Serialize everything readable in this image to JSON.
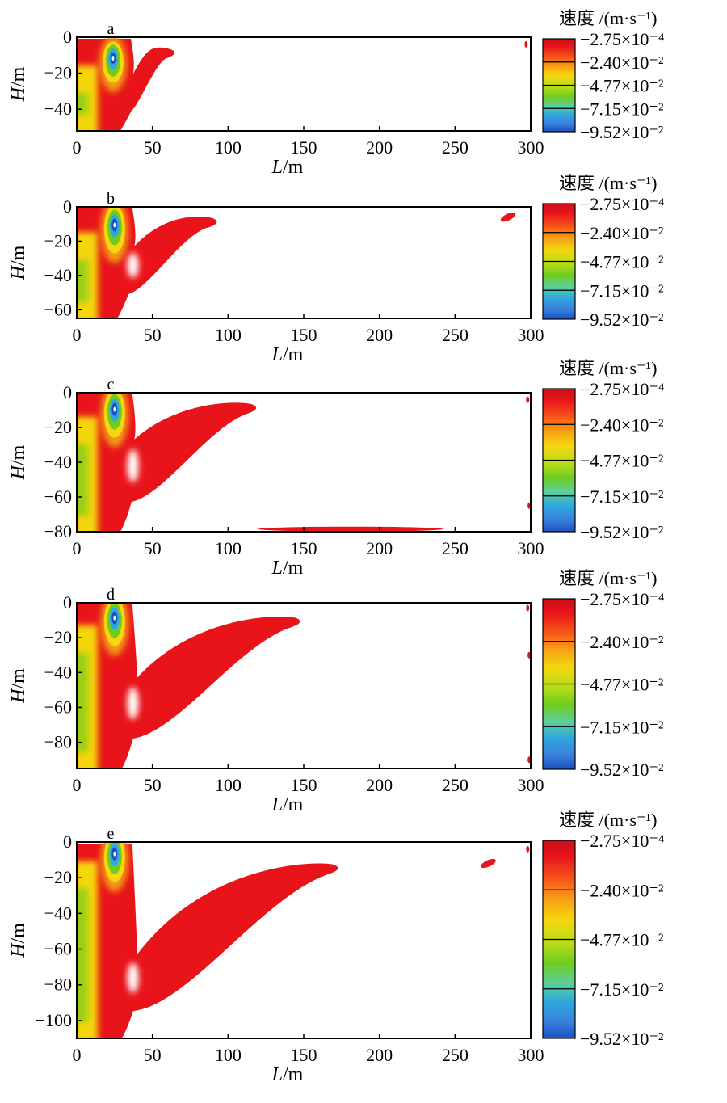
{
  "colorbar": {
    "title": "速度 /(m·s⁻¹)",
    "levels": [
      "−2.75×10⁻⁴",
      "−2.40×10⁻²",
      "−4.77×10⁻²",
      "−7.15×10⁻²",
      "−9.52×10⁻²"
    ],
    "colors": [
      "#e8141a",
      "#f5d60f",
      "#6fcc1e",
      "#2ea7df",
      "#1a4fc0"
    ]
  },
  "chart_data": [
    {
      "type": "heatmap",
      "panel": "a",
      "xlabel": "L/m",
      "ylabel": "H/m",
      "xlim": [
        0,
        300
      ],
      "ylim": [
        -52,
        0
      ],
      "xticks": [
        0,
        50,
        100,
        150,
        200,
        250,
        300
      ],
      "yticks": [
        0,
        -20,
        -40
      ],
      "well": {
        "x": 24,
        "y": -13,
        "depth_extent": -52
      },
      "plume": {
        "tip": [
          64,
          -8
        ],
        "top_join": [
          37,
          -20
        ],
        "bottom_join": [
          32,
          -38
        ],
        "width": 8
      },
      "right_patches": [
        {
          "x": 297,
          "y": -4
        }
      ]
    },
    {
      "type": "heatmap",
      "panel": "b",
      "xlabel": "L/m",
      "ylabel": "H/m",
      "xlim": [
        0,
        300
      ],
      "ylim": [
        -65,
        0
      ],
      "xticks": [
        0,
        50,
        100,
        150,
        200,
        250,
        300
      ],
      "yticks": [
        0,
        -20,
        -40,
        -60
      ],
      "well": {
        "x": 25,
        "y": -12,
        "depth_extent": -65
      },
      "plume": {
        "tip": [
          92,
          -8
        ],
        "top_join": [
          38,
          -22
        ],
        "bottom_join": [
          30,
          -48
        ],
        "width": 12
      },
      "right_patches": [
        {
          "x": 285,
          "y": -6
        }
      ]
    },
    {
      "type": "heatmap",
      "panel": "c",
      "xlabel": "L/m",
      "ylabel": "H/m",
      "xlim": [
        0,
        300
      ],
      "ylim": [
        -80,
        0
      ],
      "xticks": [
        0,
        50,
        100,
        150,
        200,
        250,
        300
      ],
      "yticks": [
        0,
        -20,
        -40,
        -60,
        -80
      ],
      "well": {
        "x": 25,
        "y": -11,
        "depth_extent": -80
      },
      "plume": {
        "tip": [
          118,
          -8
        ],
        "top_join": [
          38,
          -26
        ],
        "bottom_join": [
          32,
          -60
        ],
        "width": 18
      },
      "bottom_patch": {
        "x0": 120,
        "x1": 242,
        "y": -78
      },
      "right_patches": [
        {
          "x": 298,
          "y": -4
        },
        {
          "x": 299,
          "y": -65
        }
      ]
    },
    {
      "type": "heatmap",
      "panel": "d",
      "xlabel": "L/m",
      "ylabel": "H/m",
      "xlim": [
        0,
        300
      ],
      "ylim": [
        -95,
        0
      ],
      "xticks": [
        0,
        50,
        100,
        150,
        200,
        250,
        300
      ],
      "yticks": [
        0,
        -20,
        -40,
        -60,
        -80
      ],
      "well": {
        "x": 25,
        "y": -10,
        "depth_extent": -95
      },
      "plume": {
        "tip": [
          147,
          -10
        ],
        "top_join": [
          40,
          -42
        ],
        "bottom_join": [
          33,
          -75
        ],
        "width": 22
      },
      "right_patches": [
        {
          "x": 298,
          "y": -3
        },
        {
          "x": 299,
          "y": -30
        },
        {
          "x": 299,
          "y": -90
        }
      ]
    },
    {
      "type": "heatmap",
      "panel": "e",
      "xlabel": "L/m",
      "ylabel": "H/m",
      "xlim": [
        0,
        300
      ],
      "ylim": [
        -110,
        0
      ],
      "xticks": [
        0,
        50,
        100,
        150,
        200,
        250,
        300
      ],
      "yticks": [
        0,
        -20,
        -40,
        -60,
        -80,
        -100
      ],
      "well": {
        "x": 25,
        "y": -8,
        "depth_extent": -110
      },
      "plume": {
        "tip": [
          172,
          -14
        ],
        "top_join": [
          40,
          -62
        ],
        "bottom_join": [
          33,
          -92
        ],
        "width": 26
      },
      "right_patches": [
        {
          "x": 272,
          "y": -12
        },
        {
          "x": 298,
          "y": -4
        }
      ]
    }
  ]
}
